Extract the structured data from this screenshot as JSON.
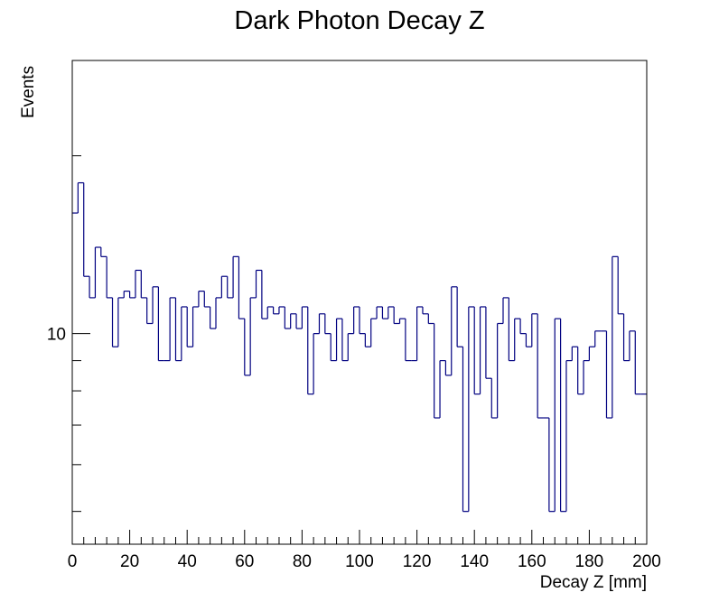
{
  "chart_data": {
    "type": "histogram",
    "title": "Dark Photon Decay Z",
    "xlabel": "Decay Z [mm]",
    "ylabel": "Events",
    "y_scale": "log",
    "xlim": [
      0,
      200
    ],
    "ylim": [
      4.4,
      29
    ],
    "x_ticks": [
      0,
      20,
      40,
      60,
      80,
      100,
      120,
      140,
      160,
      180,
      200
    ],
    "y_tick_labels": [
      {
        "value": 10,
        "label": "10"
      }
    ],
    "bin_width": 2,
    "line_color": "#000080",
    "values": [
      16,
      18,
      12.5,
      11.5,
      14,
      13.5,
      11.5,
      9.5,
      11.5,
      11.8,
      11.5,
      12.8,
      11.5,
      10.4,
      12,
      9,
      9,
      11.5,
      9,
      11.1,
      9.5,
      11.1,
      11.8,
      11.1,
      10.2,
      11.5,
      12.5,
      11.5,
      13.5,
      10.6,
      8.5,
      11.5,
      12.8,
      10.6,
      11.1,
      10.8,
      11.1,
      10.2,
      10.8,
      10.2,
      11.1,
      7.9,
      10,
      10.8,
      10,
      9,
      10.6,
      9,
      10,
      11.1,
      10,
      9.5,
      10.6,
      11.1,
      10.6,
      11.1,
      10.4,
      10.6,
      9,
      9,
      11.1,
      10.8,
      10.4,
      7.2,
      9,
      8.5,
      12,
      9.5,
      5,
      11.1,
      7.9,
      11.1,
      8.4,
      7.2,
      10.4,
      11.5,
      9,
      10.6,
      10,
      9.5,
      10.8,
      7.2,
      7.2,
      5,
      10.6,
      5,
      9,
      9.5,
      7.9,
      9,
      9.5,
      10.1,
      10.1,
      7.2,
      13.5,
      10.8,
      9,
      10.1,
      7.9,
      7.9
    ]
  }
}
